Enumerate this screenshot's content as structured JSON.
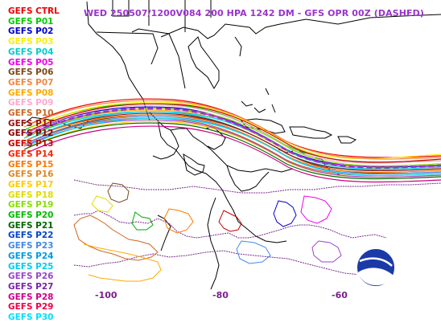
{
  "title": "WED 250507/1200V084  200 HPA 1242 DM - GFS OPR 00Z (DASHED)",
  "logo_text": "NOAA",
  "lon_ticks": [
    "-100",
    "-80",
    "-60"
  ],
  "members": [
    {
      "name": "GEFS CTRL",
      "color": "#ee0000"
    },
    {
      "name": "GEFS P01",
      "color": "#00cc00"
    },
    {
      "name": "GEFS P02",
      "color": "#0000cc"
    },
    {
      "name": "GEFS P03",
      "color": "#ffee00"
    },
    {
      "name": "GEFS P04",
      "color": "#00cccc"
    },
    {
      "name": "GEFS P05",
      "color": "#ee00ee"
    },
    {
      "name": "GEFS P06",
      "color": "#7a4a1a"
    },
    {
      "name": "GEFS P07",
      "color": "#ee8844"
    },
    {
      "name": "GEFS P08",
      "color": "#ffaa00"
    },
    {
      "name": "GEFS P09",
      "color": "#ffaacc"
    },
    {
      "name": "GEFS P10",
      "color": "#cc6622"
    },
    {
      "name": "GEFS P11",
      "color": "#991111"
    },
    {
      "name": "GEFS P12",
      "color": "#880000"
    },
    {
      "name": "GEFS P13",
      "color": "#cc0000"
    },
    {
      "name": "GEFS P14",
      "color": "#ff2200"
    },
    {
      "name": "GEFS P15",
      "color": "#ff7700"
    },
    {
      "name": "GEFS P16",
      "color": "#dd8822"
    },
    {
      "name": "GEFS P17",
      "color": "#ffcc00"
    },
    {
      "name": "GEFS P18",
      "color": "#dddd00"
    },
    {
      "name": "GEFS P19",
      "color": "#88dd00"
    },
    {
      "name": "GEFS P20",
      "color": "#00bb00"
    },
    {
      "name": "GEFS P21",
      "color": "#006600"
    },
    {
      "name": "GEFS P22",
      "color": "#0044cc"
    },
    {
      "name": "GEFS P23",
      "color": "#4488ee"
    },
    {
      "name": "GEFS P24",
      "color": "#0099dd"
    },
    {
      "name": "GEFS P25",
      "color": "#00ccee"
    },
    {
      "name": "GEFS P26",
      "color": "#9944cc"
    },
    {
      "name": "GEFS P27",
      "color": "#7722aa"
    },
    {
      "name": "GEFS P28",
      "color": "#cc0088"
    },
    {
      "name": "GEFS P29",
      "color": "#ee0044"
    },
    {
      "name": "GEFS P30",
      "color": "#00ddff"
    }
  ]
}
